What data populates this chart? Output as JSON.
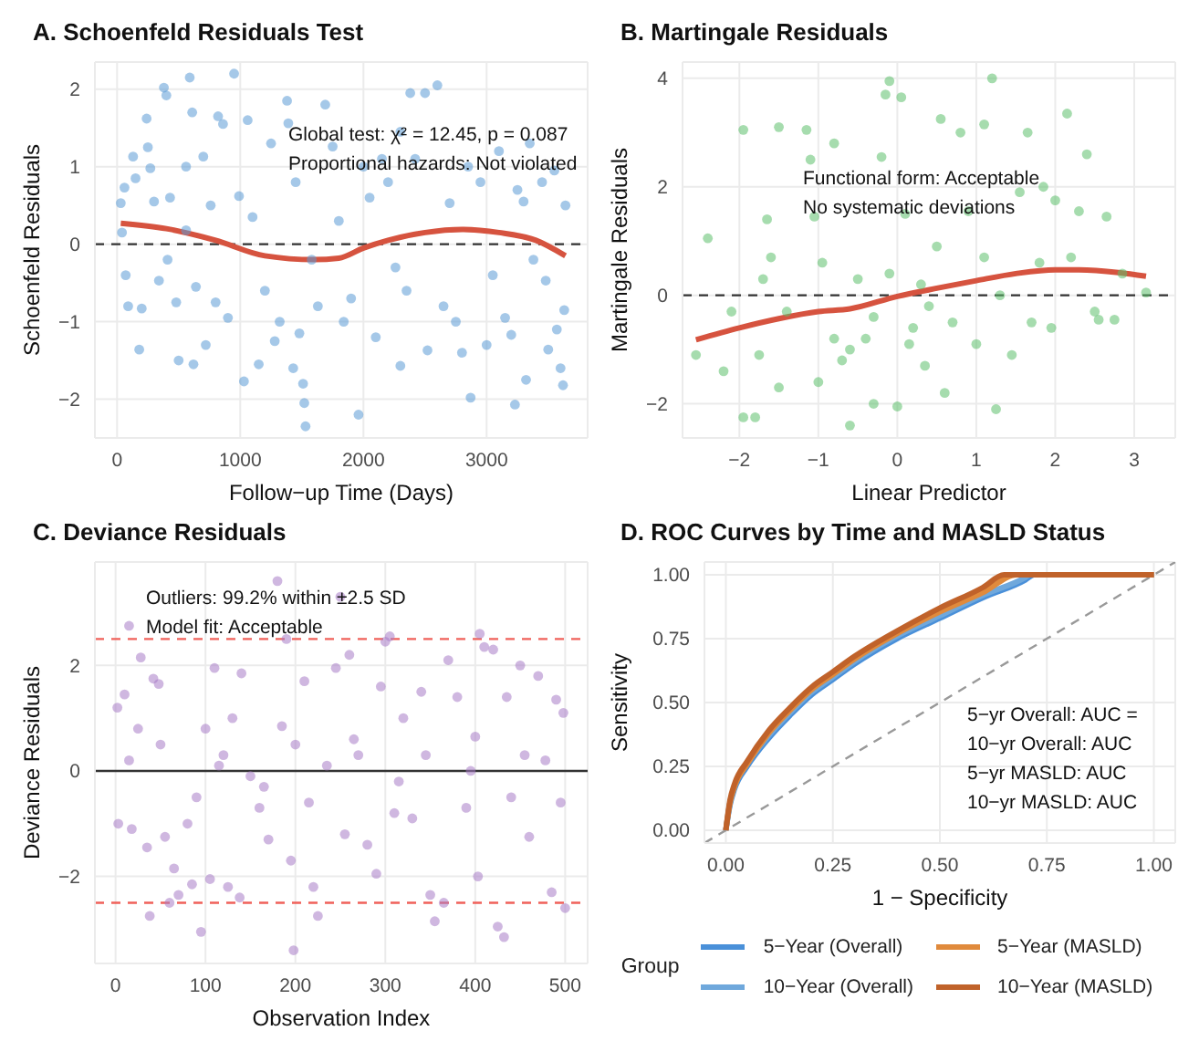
{
  "chart_data": [
    {
      "type": "scatter",
      "title": "A. Schoenfeld Residuals Test",
      "xlabel": "Follow−up Time (Days)",
      "ylabel": "Schoenfeld Residuals",
      "xlim": [
        -180,
        3820
      ],
      "ylim": [
        -2.5,
        2.35
      ],
      "xticks": [
        0,
        1000,
        2000,
        3000
      ],
      "yticks": [
        -2,
        -1,
        0,
        1,
        2
      ],
      "grid": true,
      "annotations": [
        "Global test: χ² = 12.45, p = 0.087",
        "Proportional hazards: Not violated"
      ],
      "ref_lines": [
        {
          "axis": "y",
          "value": 0,
          "color": "#333333",
          "line_style": "dashed"
        }
      ],
      "series": [
        {
          "marker": "circle",
          "color": "#5b9bd5",
          "x": [
            30,
            40,
            60,
            70,
            90,
            130,
            150,
            180,
            200,
            240,
            250,
            270,
            300,
            340,
            380,
            400,
            410,
            430,
            480,
            500,
            560,
            560,
            590,
            610,
            620,
            640,
            700,
            720,
            760,
            800,
            820,
            860,
            900,
            950,
            990,
            1030,
            1060,
            1100,
            1150,
            1200,
            1250,
            1280,
            1320,
            1380,
            1390,
            1430,
            1450,
            1480,
            1510,
            1520,
            1530,
            1580,
            1630,
            1690,
            1750,
            1800,
            1840,
            1900,
            1960,
            2000,
            2050,
            2100,
            2150,
            2200,
            2260,
            2300,
            2300,
            2350,
            2380,
            2420,
            2500,
            2520,
            2600,
            2650,
            2700,
            2750,
            2800,
            2850,
            2870,
            2950,
            3000,
            3050,
            3100,
            3150,
            3200,
            3230,
            3250,
            3300,
            3320,
            3350,
            3380,
            3450,
            3480,
            3500,
            3550,
            3570,
            3600,
            3620,
            3640,
            3630
          ],
          "values": [
            0.53,
            0.15,
            0.73,
            -0.4,
            -0.8,
            1.13,
            0.85,
            -1.36,
            -0.83,
            1.62,
            1.25,
            0.98,
            0.55,
            -0.47,
            2.02,
            1.92,
            -0.2,
            0.6,
            -0.75,
            -1.5,
            1.0,
            0.18,
            2.15,
            1.7,
            -1.55,
            -0.55,
            1.13,
            -1.3,
            0.5,
            -0.75,
            1.65,
            1.55,
            -0.95,
            2.2,
            0.62,
            -1.77,
            1.6,
            0.35,
            -1.55,
            -0.6,
            1.3,
            -1.25,
            -1.0,
            1.85,
            1.56,
            -1.6,
            0.8,
            -1.15,
            -1.8,
            -2.05,
            -2.35,
            -0.2,
            -0.8,
            1.8,
            1.26,
            0.3,
            -1.0,
            -0.7,
            -2.2,
            1.0,
            0.6,
            -1.2,
            1.1,
            0.8,
            -0.3,
            1.45,
            -1.57,
            -0.6,
            1.95,
            1.1,
            1.95,
            -1.37,
            2.05,
            -0.8,
            0.53,
            -1.0,
            -1.4,
            1.0,
            -1.98,
            0.8,
            -1.3,
            -0.4,
            1.2,
            -0.95,
            -1.17,
            -2.07,
            0.7,
            0.55,
            -1.75,
            1.3,
            -0.2,
            0.8,
            -0.47,
            -1.36,
            0.95,
            -1.1,
            -1.6,
            -1.82,
            0.5,
            -0.85
          ]
        },
        {
          "type": "line",
          "color": "#d6533f",
          "x": [
            30,
            400,
            800,
            1200,
            1600,
            1800,
            2000,
            2200,
            2500,
            2800,
            3100,
            3400,
            3640
          ],
          "values": [
            0.27,
            0.2,
            0.05,
            -0.15,
            -0.2,
            -0.18,
            -0.05,
            0.05,
            0.15,
            0.19,
            0.15,
            0.05,
            -0.15
          ]
        }
      ]
    },
    {
      "type": "scatter",
      "title": "B. Martingale Residuals",
      "xlabel": "Linear Predictor",
      "ylabel": "Martingale Residuals",
      "xlim": [
        -2.72,
        3.52
      ],
      "ylim": [
        -2.63,
        4.3
      ],
      "xticks": [
        -2,
        -1,
        0,
        1,
        2,
        3
      ],
      "yticks": [
        -2,
        0,
        2,
        4
      ],
      "grid": true,
      "annotations": [
        "Functional form: Acceptable",
        "No systematic deviations"
      ],
      "ref_lines": [
        {
          "axis": "y",
          "value": 0,
          "color": "#333333",
          "line_style": "dashed"
        }
      ],
      "series": [
        {
          "marker": "circle",
          "color": "#5cc06b",
          "x": [
            -2.55,
            -2.4,
            -2.2,
            -2.1,
            -1.95,
            -1.95,
            -1.8,
            -1.75,
            -1.7,
            -1.65,
            -1.6,
            -1.5,
            -1.5,
            -1.4,
            -1.15,
            -1.1,
            -1.05,
            -1.0,
            -0.95,
            -0.8,
            -0.8,
            -0.7,
            -0.6,
            -0.5,
            -0.4,
            -0.3,
            -0.2,
            -0.15,
            -0.1,
            -0.1,
            0.0,
            0.05,
            0.1,
            0.15,
            0.3,
            0.35,
            0.5,
            0.55,
            0.6,
            0.7,
            0.8,
            0.9,
            1.0,
            1.1,
            1.1,
            1.2,
            1.25,
            1.3,
            1.45,
            1.55,
            1.65,
            1.7,
            1.8,
            1.85,
            1.95,
            2.0,
            2.15,
            2.2,
            2.4,
            2.5,
            2.55,
            2.65,
            2.75,
            2.85,
            3.15,
            2.3,
            -0.3,
            0.2,
            0.4,
            -0.6
          ],
          "values": [
            -1.1,
            1.05,
            -1.4,
            -0.3,
            3.05,
            -2.25,
            -2.25,
            -1.1,
            0.3,
            1.4,
            0.7,
            -1.7,
            3.1,
            -0.3,
            3.05,
            2.5,
            1.45,
            -1.6,
            0.6,
            2.8,
            -0.8,
            -1.2,
            -2.4,
            0.3,
            -0.8,
            -2.0,
            2.55,
            3.7,
            0.4,
            3.95,
            -2.05,
            3.65,
            1.5,
            -0.9,
            0.2,
            -1.3,
            0.9,
            3.25,
            -1.8,
            -0.5,
            3.0,
            1.55,
            -0.9,
            0.7,
            3.15,
            4.0,
            -2.1,
            0.0,
            -1.1,
            1.9,
            3.0,
            -0.5,
            0.6,
            2.0,
            -0.6,
            1.75,
            3.35,
            0.7,
            2.6,
            -0.3,
            -0.45,
            1.45,
            -0.45,
            0.4,
            0.05,
            1.55,
            -0.4,
            -0.6,
            -0.2,
            -1.0
          ]
        },
        {
          "type": "line",
          "color": "#d6533f",
          "x": [
            -2.55,
            -2,
            -1.5,
            -1,
            -0.6,
            0,
            0.5,
            1,
            1.5,
            2,
            2.3,
            2.8,
            3.15
          ],
          "values": [
            -0.82,
            -0.6,
            -0.43,
            -0.3,
            -0.25,
            -0.02,
            0.13,
            0.27,
            0.4,
            0.47,
            0.47,
            0.42,
            0.35
          ]
        }
      ]
    },
    {
      "type": "scatter",
      "title": "C. Deviance Residuals",
      "xlabel": "Observation Index",
      "ylabel": "Deviance Residuals",
      "xlim": [
        -23,
        525
      ],
      "ylim": [
        -3.65,
        3.96
      ],
      "xticks": [
        0,
        100,
        200,
        300,
        400,
        500
      ],
      "yticks": [
        -2,
        0,
        2
      ],
      "grid": true,
      "annotations": [
        "Outliers: 99.2% within ±2.5 SD",
        "Model fit: Acceptable"
      ],
      "ref_lines": [
        {
          "axis": "y",
          "value": 2.5,
          "color": "#f0615a",
          "line_style": "dashed"
        },
        {
          "axis": "y",
          "value": -2.5,
          "color": "#f0615a",
          "line_style": "dashed"
        },
        {
          "axis": "y",
          "value": 0,
          "color": "#333333",
          "line_style": "solid"
        }
      ],
      "series": [
        {
          "marker": "circle",
          "color": "#a77cc7",
          "x": [
            2,
            3,
            10,
            15,
            18,
            25,
            28,
            35,
            38,
            42,
            48,
            55,
            60,
            65,
            70,
            80,
            85,
            95,
            100,
            105,
            110,
            120,
            125,
            130,
            138,
            140,
            150,
            160,
            170,
            180,
            185,
            190,
            195,
            198,
            200,
            210,
            220,
            225,
            235,
            245,
            250,
            255,
            260,
            270,
            280,
            290,
            295,
            300,
            305,
            310,
            320,
            330,
            340,
            350,
            355,
            365,
            370,
            380,
            390,
            400,
            403,
            405,
            410,
            420,
            425,
            432,
            435,
            440,
            450,
            460,
            470,
            478,
            485,
            490,
            495,
            500,
            498,
            15,
            50,
            90,
            115,
            165,
            215,
            265,
            315,
            345,
            395,
            455
          ],
          "values": [
            1.2,
            -1.0,
            1.45,
            2.75,
            -1.1,
            0.8,
            2.15,
            -1.45,
            -2.75,
            1.75,
            1.65,
            -1.25,
            -2.5,
            -1.85,
            -2.35,
            -1.0,
            -2.15,
            -3.05,
            0.8,
            -2.05,
            1.95,
            0.3,
            -2.2,
            1.0,
            -2.4,
            1.85,
            -0.1,
            -0.7,
            -1.3,
            3.6,
            0.85,
            2.5,
            -1.7,
            -3.4,
            0.5,
            1.7,
            -2.2,
            -2.75,
            0.1,
            1.95,
            3.3,
            -1.2,
            2.2,
            0.3,
            -1.4,
            -1.95,
            1.6,
            2.45,
            2.55,
            -0.8,
            1.0,
            -0.9,
            1.5,
            -2.35,
            -2.85,
            -2.5,
            2.1,
            1.4,
            -0.7,
            0.65,
            -2.0,
            2.6,
            2.35,
            2.3,
            -2.95,
            -3.15,
            1.4,
            -0.5,
            2.0,
            -1.25,
            1.8,
            0.2,
            -2.3,
            1.35,
            -0.6,
            -2.6,
            1.1,
            0.2,
            0.5,
            -0.5,
            0.1,
            -0.3,
            -0.6,
            0.6,
            -0.2,
            0.3,
            0.0,
            0.3
          ]
        }
      ]
    },
    {
      "type": "line",
      "title": "D. ROC Curves by Time and MASLD Status",
      "xlabel": "1 − Specificity",
      "ylabel": "Sensitivity",
      "xlim": [
        -0.05,
        1.05
      ],
      "ylim": [
        -0.05,
        1.05
      ],
      "xticks": [
        {
          "value": 0,
          "label": "0.00"
        },
        {
          "value": 0.25,
          "label": "0.25"
        },
        {
          "value": 0.5,
          "label": "0.50"
        },
        {
          "value": 0.75,
          "label": "0.75"
        },
        {
          "value": 1,
          "label": "1.00"
        }
      ],
      "yticks": [
        {
          "value": 0,
          "label": "0.00"
        },
        {
          "value": 0.25,
          "label": "0.25"
        },
        {
          "value": 0.5,
          "label": "0.50"
        },
        {
          "value": 0.75,
          "label": "0.75"
        },
        {
          "value": 1,
          "label": "1.00"
        }
      ],
      "grid": true,
      "legend": "bottom",
      "legend_title": "Group",
      "annotations": [
        "5−yr Overall: AUC =",
        "10−yr Overall: AUC",
        "5−yr MASLD: AUC",
        "10−yr MASLD: AUC"
      ],
      "series": [
        {
          "type": "line",
          "color": "#999999",
          "line_style": "dashed",
          "x": [
            -0.05,
            1.05
          ],
          "values": [
            -0.05,
            1.05
          ]
        },
        {
          "name": "5−Year (Overall)",
          "color": "#4a90d9",
          "x": [
            0,
            0.01,
            0.02,
            0.05,
            0.1,
            0.15,
            0.2,
            0.25,
            0.3,
            0.4,
            0.5,
            0.6,
            0.7,
            0.72,
            1
          ],
          "values": [
            0,
            0.1,
            0.16,
            0.25,
            0.36,
            0.45,
            0.53,
            0.59,
            0.65,
            0.75,
            0.83,
            0.91,
            0.98,
            1,
            1
          ]
        },
        {
          "name": "10−Year (Overall)",
          "color": "#6fa8dc",
          "x": [
            0,
            0.01,
            0.02,
            0.05,
            0.1,
            0.15,
            0.2,
            0.25,
            0.3,
            0.4,
            0.5,
            0.6,
            0.7,
            0.71,
            1
          ],
          "values": [
            0,
            0.11,
            0.17,
            0.26,
            0.37,
            0.46,
            0.54,
            0.6,
            0.66,
            0.76,
            0.84,
            0.92,
            0.99,
            1,
            1
          ]
        },
        {
          "name": "5−Year (MASLD)",
          "color": "#e08a3c",
          "x": [
            0,
            0.01,
            0.02,
            0.05,
            0.1,
            0.15,
            0.2,
            0.25,
            0.3,
            0.4,
            0.5,
            0.6,
            0.68,
            1
          ],
          "values": [
            0,
            0.11,
            0.17,
            0.26,
            0.38,
            0.47,
            0.55,
            0.61,
            0.67,
            0.77,
            0.855,
            0.93,
            1,
            1
          ]
        },
        {
          "name": "10−Year (MASLD)",
          "color": "#c0622a",
          "x": [
            0,
            0.01,
            0.02,
            0.05,
            0.1,
            0.15,
            0.2,
            0.25,
            0.3,
            0.4,
            0.5,
            0.6,
            0.65,
            1
          ],
          "values": [
            0,
            0.12,
            0.18,
            0.27,
            0.39,
            0.48,
            0.56,
            0.62,
            0.68,
            0.78,
            0.87,
            0.95,
            1,
            1
          ]
        }
      ]
    }
  ]
}
